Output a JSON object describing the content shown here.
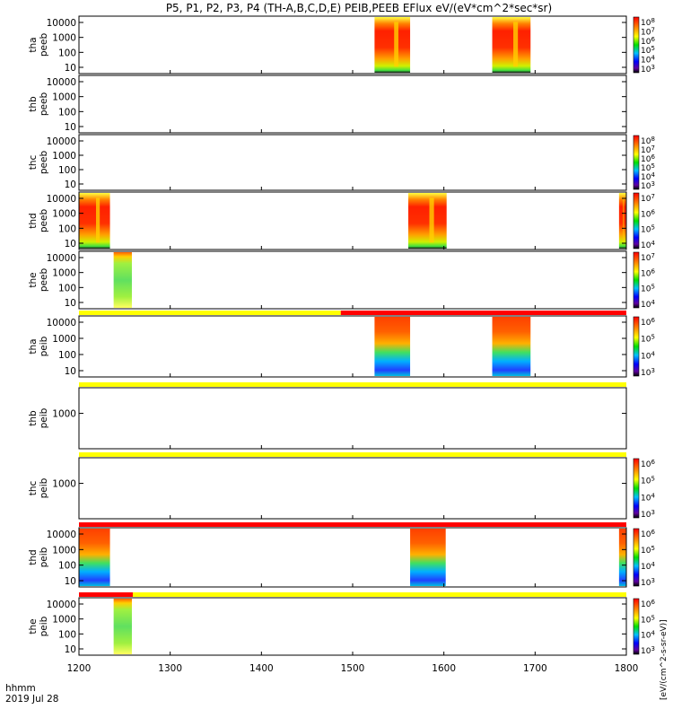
{
  "chart_data": {
    "type": "heatmap",
    "title": "P5, P1, P2, P3, P4 (TH-A,B,C,D,E) PEIB,PEEB EFlux eV/(eV*cm^2*sec*sr)",
    "x_label_line1": "hhmm",
    "x_label_line2": "2019 Jul 28",
    "x_ticks": [
      "1200",
      "1300",
      "1400",
      "1500",
      "1600",
      "1700",
      "1800"
    ],
    "x_range": [
      1200,
      1800
    ],
    "y_ticks_full": [
      "10",
      "100",
      "1000",
      "10000"
    ],
    "y_ticks_single": [
      "1000"
    ],
    "colorbar_units": "[eV/(cm^2-s-sr-eV)]",
    "colors": {
      "red": "#ff0000",
      "yellow": "#ffff00",
      "orange": "#ff7000",
      "green": "#30e030",
      "blue": "#2050ff"
    },
    "panels": [
      {
        "label1": "tha",
        "label2": "peeb",
        "top": 18,
        "bottom": 82,
        "yticks": "full",
        "colorbar": true,
        "cb_max": "10^8",
        "cb_ticks": [
          "10^8",
          "10^7",
          "10^6",
          "10^5",
          "10^4",
          "10^3"
        ],
        "blocks": [
          {
            "x0": 1524,
            "x1": 1563,
            "profile": "peeb"
          },
          {
            "x0": 1653,
            "x1": 1695,
            "profile": "peeb"
          }
        ],
        "strip": null
      },
      {
        "label1": "thb",
        "label2": "peeb",
        "top": 84,
        "bottom": 148,
        "yticks": "full",
        "colorbar": false,
        "blocks": [],
        "strip": null
      },
      {
        "label1": "thc",
        "label2": "peeb",
        "top": 150,
        "bottom": 212,
        "yticks": "full",
        "colorbar": true,
        "cb_max": "10^8",
        "cb_ticks": [
          "10^8",
          "10^7",
          "10^6",
          "10^5",
          "10^4",
          "10^3"
        ],
        "blocks": [],
        "strip": null
      },
      {
        "label1": "thd",
        "label2": "peeb",
        "top": 214,
        "bottom": 278,
        "yticks": "full",
        "colorbar": true,
        "cb_max": "10^8",
        "cb_ticks": [
          "10^7",
          "10^6",
          "10^5",
          "10^4"
        ],
        "blocks": [
          {
            "x0": 1200,
            "x1": 1234,
            "profile": "peeb"
          },
          {
            "x0": 1561,
            "x1": 1603,
            "profile": "peeb"
          },
          {
            "x0": 1792,
            "x1": 1800,
            "profile": "peeb"
          }
        ],
        "strip": null
      },
      {
        "label1": "the",
        "label2": "peeb",
        "top": 280,
        "bottom": 344,
        "yticks": "full",
        "colorbar": true,
        "cb_max": "10^8",
        "cb_ticks": [
          "10^7",
          "10^6",
          "10^5",
          "10^4"
        ],
        "blocks": [
          {
            "x0": 1238,
            "x1": 1258,
            "profile": "green"
          }
        ],
        "strip": null
      },
      {
        "label1": "tha",
        "label2": "peib",
        "top": 352,
        "bottom": 420,
        "yticks": "full",
        "colorbar": true,
        "cb_max": "10^7",
        "cb_ticks": [
          "10^6",
          "10^5",
          "10^4",
          "10^3"
        ],
        "blocks": [
          {
            "x0": 1524,
            "x1": 1563,
            "profile": "peib"
          },
          {
            "x0": 1653,
            "x1": 1695,
            "profile": "peib"
          }
        ],
        "strip": [
          {
            "x0": 1200,
            "x1": 1487,
            "color": "yellow"
          },
          {
            "x0": 1487,
            "x1": 1800,
            "color": "red"
          }
        ]
      },
      {
        "label1": "thb",
        "label2": "peib",
        "top": 432,
        "bottom": 500,
        "yticks": "single",
        "colorbar": false,
        "blocks": [],
        "strip": [
          {
            "x0": 1200,
            "x1": 1800,
            "color": "yellow"
          }
        ]
      },
      {
        "label1": "thc",
        "label2": "peib",
        "top": 510,
        "bottom": 578,
        "yticks": "single",
        "colorbar": true,
        "cb_max": "10^7",
        "cb_ticks": [
          "10^6",
          "10^5",
          "10^4",
          "10^3"
        ],
        "blocks": [],
        "strip": [
          {
            "x0": 1200,
            "x1": 1800,
            "color": "yellow"
          }
        ]
      },
      {
        "label1": "thd",
        "label2": "peib",
        "top": 588,
        "bottom": 654,
        "yticks": "full",
        "colorbar": true,
        "cb_max": "10^7",
        "cb_ticks": [
          "10^6",
          "10^5",
          "10^4",
          "10^3"
        ],
        "blocks": [
          {
            "x0": 1200,
            "x1": 1234,
            "profile": "peib"
          },
          {
            "x0": 1563,
            "x1": 1602,
            "profile": "peib"
          },
          {
            "x0": 1792,
            "x1": 1800,
            "profile": "peib"
          }
        ],
        "strip": [
          {
            "x0": 1200,
            "x1": 1800,
            "color": "red"
          }
        ]
      },
      {
        "label1": "the",
        "label2": "peib",
        "top": 666,
        "bottom": 730,
        "yticks": "full",
        "colorbar": true,
        "cb_max": "10^7",
        "cb_ticks": [
          "10^6",
          "10^5",
          "10^4",
          "10^3"
        ],
        "blocks": [
          {
            "x0": 1238,
            "x1": 1258,
            "profile": "green"
          }
        ],
        "strip": [
          {
            "x0": 1200,
            "x1": 1259,
            "color": "red"
          },
          {
            "x0": 1259,
            "x1": 1800,
            "color": "yellow"
          }
        ]
      }
    ]
  }
}
